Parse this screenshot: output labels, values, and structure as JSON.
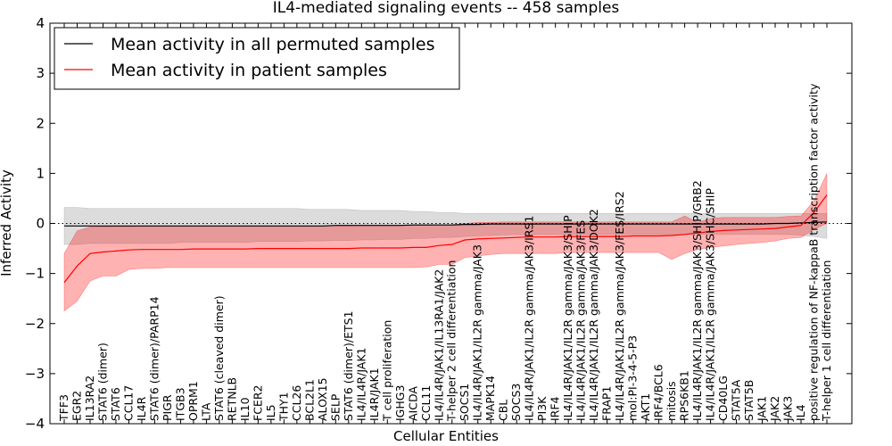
{
  "chart_data": {
    "type": "line",
    "title": "IL4-mediated signaling events -- 458 samples",
    "xlabel": "Cellular Entities",
    "ylabel": "Inferred Activity",
    "ylim": [
      -4,
      4
    ],
    "yticks": [
      -4,
      -3,
      -2,
      -1,
      0,
      1,
      2,
      3,
      4
    ],
    "ytick_labels": [
      "−4",
      "−3",
      "−2",
      "−1",
      "0",
      "1",
      "2",
      "3",
      "4"
    ],
    "legend": {
      "position": "top-left",
      "entries": [
        {
          "label": "Mean activity in all permuted samples",
          "color": "#000000"
        },
        {
          "label": "Mean activity in patient samples",
          "color": "#ff0000"
        }
      ]
    },
    "reference_line": 0,
    "entities": [
      "TFF3",
      "EGR2",
      "IL13RA2",
      "STAT6 (dimer)",
      "STAT6",
      "CCL17",
      "IL4R",
      "STAT6 (dimer)/PARP14",
      "PIGR",
      "ITGB3",
      "OPRM1",
      "LTA",
      "STAT6 (cleaved dimer)",
      "RETNLB",
      "IL10",
      "FCER2",
      "IL5",
      "THY1",
      "CCL26",
      "BCL2L1",
      "ALOX15",
      "SELP",
      "STAT6 (dimer)/ETS1",
      "IL4/IL4R/JAK1",
      "IL4R/JAK1",
      "T cell proliferation",
      "IGHG3",
      "AICDA",
      "CCL11",
      "IL4/IL4R/JAK1/IL13RA1/JAK2",
      "T-helper 2 cell differentiation",
      "SOCS1",
      "IL4/IL4R/JAK1/IL2R gamma/JAK3",
      "MAPK14",
      "CBL",
      "SOCS3",
      "IL4/IL4R/JAK1/IL2R gamma/JAK3/IRS1",
      "PI3K",
      "IRF4",
      "IL4/IL4R/JAK1/IL2R gamma/JAK3/SHIP",
      "IL4/IL4R/JAK1/IL2R gamma/JAK3/FES",
      "IL4/IL4R/JAK1/IL2R gamma/JAK3/DOK2",
      "FRAP1",
      "IL4/IL4R/JAK1/IL2R gamma/JAK3/FES/IRS2",
      "mol:PI-3-4-5-P3",
      "AKT1",
      "IRF4/BCL6",
      "mitosis",
      "RPS6KB1",
      "IL4/IL4R/JAK1/IL2R gamma/JAK3/SHIP/GRB2",
      "IL4/IL4R/JAK1/IL2R gamma/JAK3/SHC/SHIP",
      "CD40LG",
      "STAT5A",
      "STAT5B",
      "JAK1",
      "JAK2",
      "JAK3",
      "IL4",
      "positive regulation of NF-kappaB transcription factor activity",
      "T-helper 1 cell differentiation"
    ],
    "series": [
      {
        "name": "Mean activity in patient samples",
        "color": "#ff0000",
        "x": [
          0,
          1,
          2,
          3,
          4,
          5,
          6,
          7,
          8,
          9,
          10,
          11,
          12,
          13,
          14,
          15,
          16,
          17,
          18,
          19,
          20,
          21,
          22,
          23,
          24,
          25,
          26,
          27,
          28,
          29,
          30,
          31,
          32,
          33,
          34,
          35,
          36,
          37,
          38,
          39,
          40,
          41,
          42,
          43,
          44,
          45,
          46,
          47,
          48,
          49,
          50,
          51,
          52,
          53,
          54,
          55,
          56,
          57,
          58,
          59
        ],
        "values": [
          -1.18,
          -0.85,
          -0.6,
          -0.57,
          -0.55,
          -0.53,
          -0.52,
          -0.52,
          -0.52,
          -0.52,
          -0.51,
          -0.51,
          -0.51,
          -0.51,
          -0.51,
          -0.5,
          -0.5,
          -0.5,
          -0.5,
          -0.5,
          -0.5,
          -0.5,
          -0.5,
          -0.49,
          -0.49,
          -0.49,
          -0.49,
          -0.48,
          -0.48,
          -0.44,
          -0.42,
          -0.33,
          -0.31,
          -0.3,
          -0.29,
          -0.28,
          -0.27,
          -0.27,
          -0.27,
          -0.26,
          -0.26,
          -0.26,
          -0.26,
          -0.26,
          -0.25,
          -0.25,
          -0.25,
          -0.24,
          -0.22,
          -0.19,
          -0.16,
          -0.14,
          -0.13,
          -0.12,
          -0.11,
          -0.1,
          -0.07,
          -0.04,
          0.22,
          0.57
        ],
        "band_upper": [
          -0.6,
          -0.15,
          -0.07,
          -0.07,
          -0.06,
          -0.06,
          -0.05,
          -0.05,
          -0.05,
          -0.05,
          -0.05,
          -0.05,
          -0.05,
          -0.05,
          -0.05,
          -0.05,
          -0.05,
          -0.05,
          -0.05,
          -0.05,
          -0.05,
          -0.05,
          -0.05,
          -0.04,
          -0.04,
          -0.04,
          -0.04,
          -0.04,
          -0.04,
          -0.03,
          -0.03,
          0.0,
          0.02,
          0.02,
          0.03,
          0.03,
          0.03,
          0.03,
          0.03,
          0.03,
          0.03,
          0.03,
          0.03,
          0.03,
          0.03,
          0.03,
          0.03,
          0.03,
          0.15,
          0.02,
          0.1,
          0.12,
          0.12,
          0.12,
          0.12,
          0.12,
          0.14,
          0.15,
          0.45,
          1.0
        ],
        "band_lower": [
          -1.75,
          -1.55,
          -1.15,
          -1.05,
          -1.05,
          -0.92,
          -0.9,
          -0.9,
          -0.88,
          -0.88,
          -0.88,
          -0.88,
          -0.88,
          -0.88,
          -0.88,
          -0.88,
          -0.88,
          -0.88,
          -0.88,
          -0.88,
          -0.88,
          -0.88,
          -0.88,
          -0.88,
          -0.88,
          -0.88,
          -0.88,
          -0.88,
          -0.87,
          -0.82,
          -0.82,
          -0.68,
          -0.65,
          -0.62,
          -0.6,
          -0.6,
          -0.6,
          -0.6,
          -0.6,
          -0.58,
          -0.58,
          -0.58,
          -0.58,
          -0.58,
          -0.58,
          -0.58,
          -0.58,
          -0.72,
          -0.6,
          -0.52,
          -0.48,
          -0.45,
          -0.42,
          -0.4,
          -0.38,
          -0.35,
          -0.3,
          -0.28,
          -0.12,
          0.0
        ]
      },
      {
        "name": "Mean activity in all permuted samples",
        "color": "#000000",
        "x": [
          0,
          1,
          2,
          3,
          4,
          5,
          6,
          7,
          8,
          9,
          10,
          11,
          12,
          13,
          14,
          15,
          16,
          17,
          18,
          19,
          20,
          21,
          22,
          23,
          24,
          25,
          26,
          27,
          28,
          29,
          30,
          31,
          32,
          33,
          34,
          35,
          36,
          37,
          38,
          39,
          40,
          41,
          42,
          43,
          44,
          45,
          46,
          47,
          48,
          49,
          50,
          51,
          52,
          53,
          54,
          55,
          56,
          57,
          58,
          59
        ],
        "values": [
          -0.05,
          -0.05,
          -0.05,
          -0.05,
          -0.05,
          -0.05,
          -0.05,
          -0.05,
          -0.05,
          -0.05,
          -0.05,
          -0.05,
          -0.05,
          -0.05,
          -0.05,
          -0.05,
          -0.05,
          -0.05,
          -0.05,
          -0.05,
          -0.05,
          -0.04,
          -0.04,
          -0.04,
          -0.04,
          -0.04,
          -0.04,
          -0.03,
          -0.03,
          -0.03,
          -0.03,
          -0.02,
          -0.02,
          -0.01,
          -0.01,
          -0.01,
          -0.01,
          -0.01,
          -0.01,
          -0.01,
          -0.01,
          -0.01,
          -0.01,
          -0.01,
          -0.01,
          -0.01,
          -0.01,
          -0.01,
          -0.01,
          -0.01,
          -0.01,
          -0.01,
          -0.01,
          -0.01,
          -0.01,
          0.0,
          0.0,
          0.01,
          0.02,
          0.03
        ],
        "band_upper": [
          0.32,
          0.32,
          0.3,
          0.3,
          0.3,
          0.3,
          0.3,
          0.3,
          0.3,
          0.3,
          0.3,
          0.3,
          0.3,
          0.3,
          0.3,
          0.3,
          0.3,
          0.3,
          0.3,
          0.28,
          0.28,
          0.28,
          0.28,
          0.26,
          0.26,
          0.26,
          0.26,
          0.24,
          0.24,
          0.22,
          0.22,
          0.2,
          0.2,
          0.2,
          0.2,
          0.2,
          0.2,
          0.2,
          0.2,
          0.2,
          0.2,
          0.2,
          0.2,
          0.2,
          0.2,
          0.2,
          0.2,
          0.2,
          0.2,
          0.2,
          0.2,
          0.2,
          0.2,
          0.2,
          0.2,
          0.2,
          0.2,
          0.2,
          0.2,
          0.2
        ],
        "band_lower": [
          -0.42,
          -0.42,
          -0.4,
          -0.4,
          -0.4,
          -0.4,
          -0.4,
          -0.4,
          -0.4,
          -0.38,
          -0.38,
          -0.38,
          -0.38,
          -0.38,
          -0.38,
          -0.36,
          -0.36,
          -0.36,
          -0.36,
          -0.35,
          -0.35,
          -0.34,
          -0.34,
          -0.33,
          -0.33,
          -0.32,
          -0.32,
          -0.3,
          -0.3,
          -0.28,
          -0.28,
          -0.26,
          -0.25,
          -0.24,
          -0.23,
          -0.22,
          -0.22,
          -0.22,
          -0.22,
          -0.22,
          -0.22,
          -0.22,
          -0.22,
          -0.22,
          -0.22,
          -0.22,
          -0.22,
          -0.22,
          -0.22,
          -0.22,
          -0.22,
          -0.22,
          -0.22,
          -0.22,
          -0.22,
          -0.22,
          -0.22,
          -0.24,
          -0.26,
          -0.3
        ]
      }
    ]
  }
}
